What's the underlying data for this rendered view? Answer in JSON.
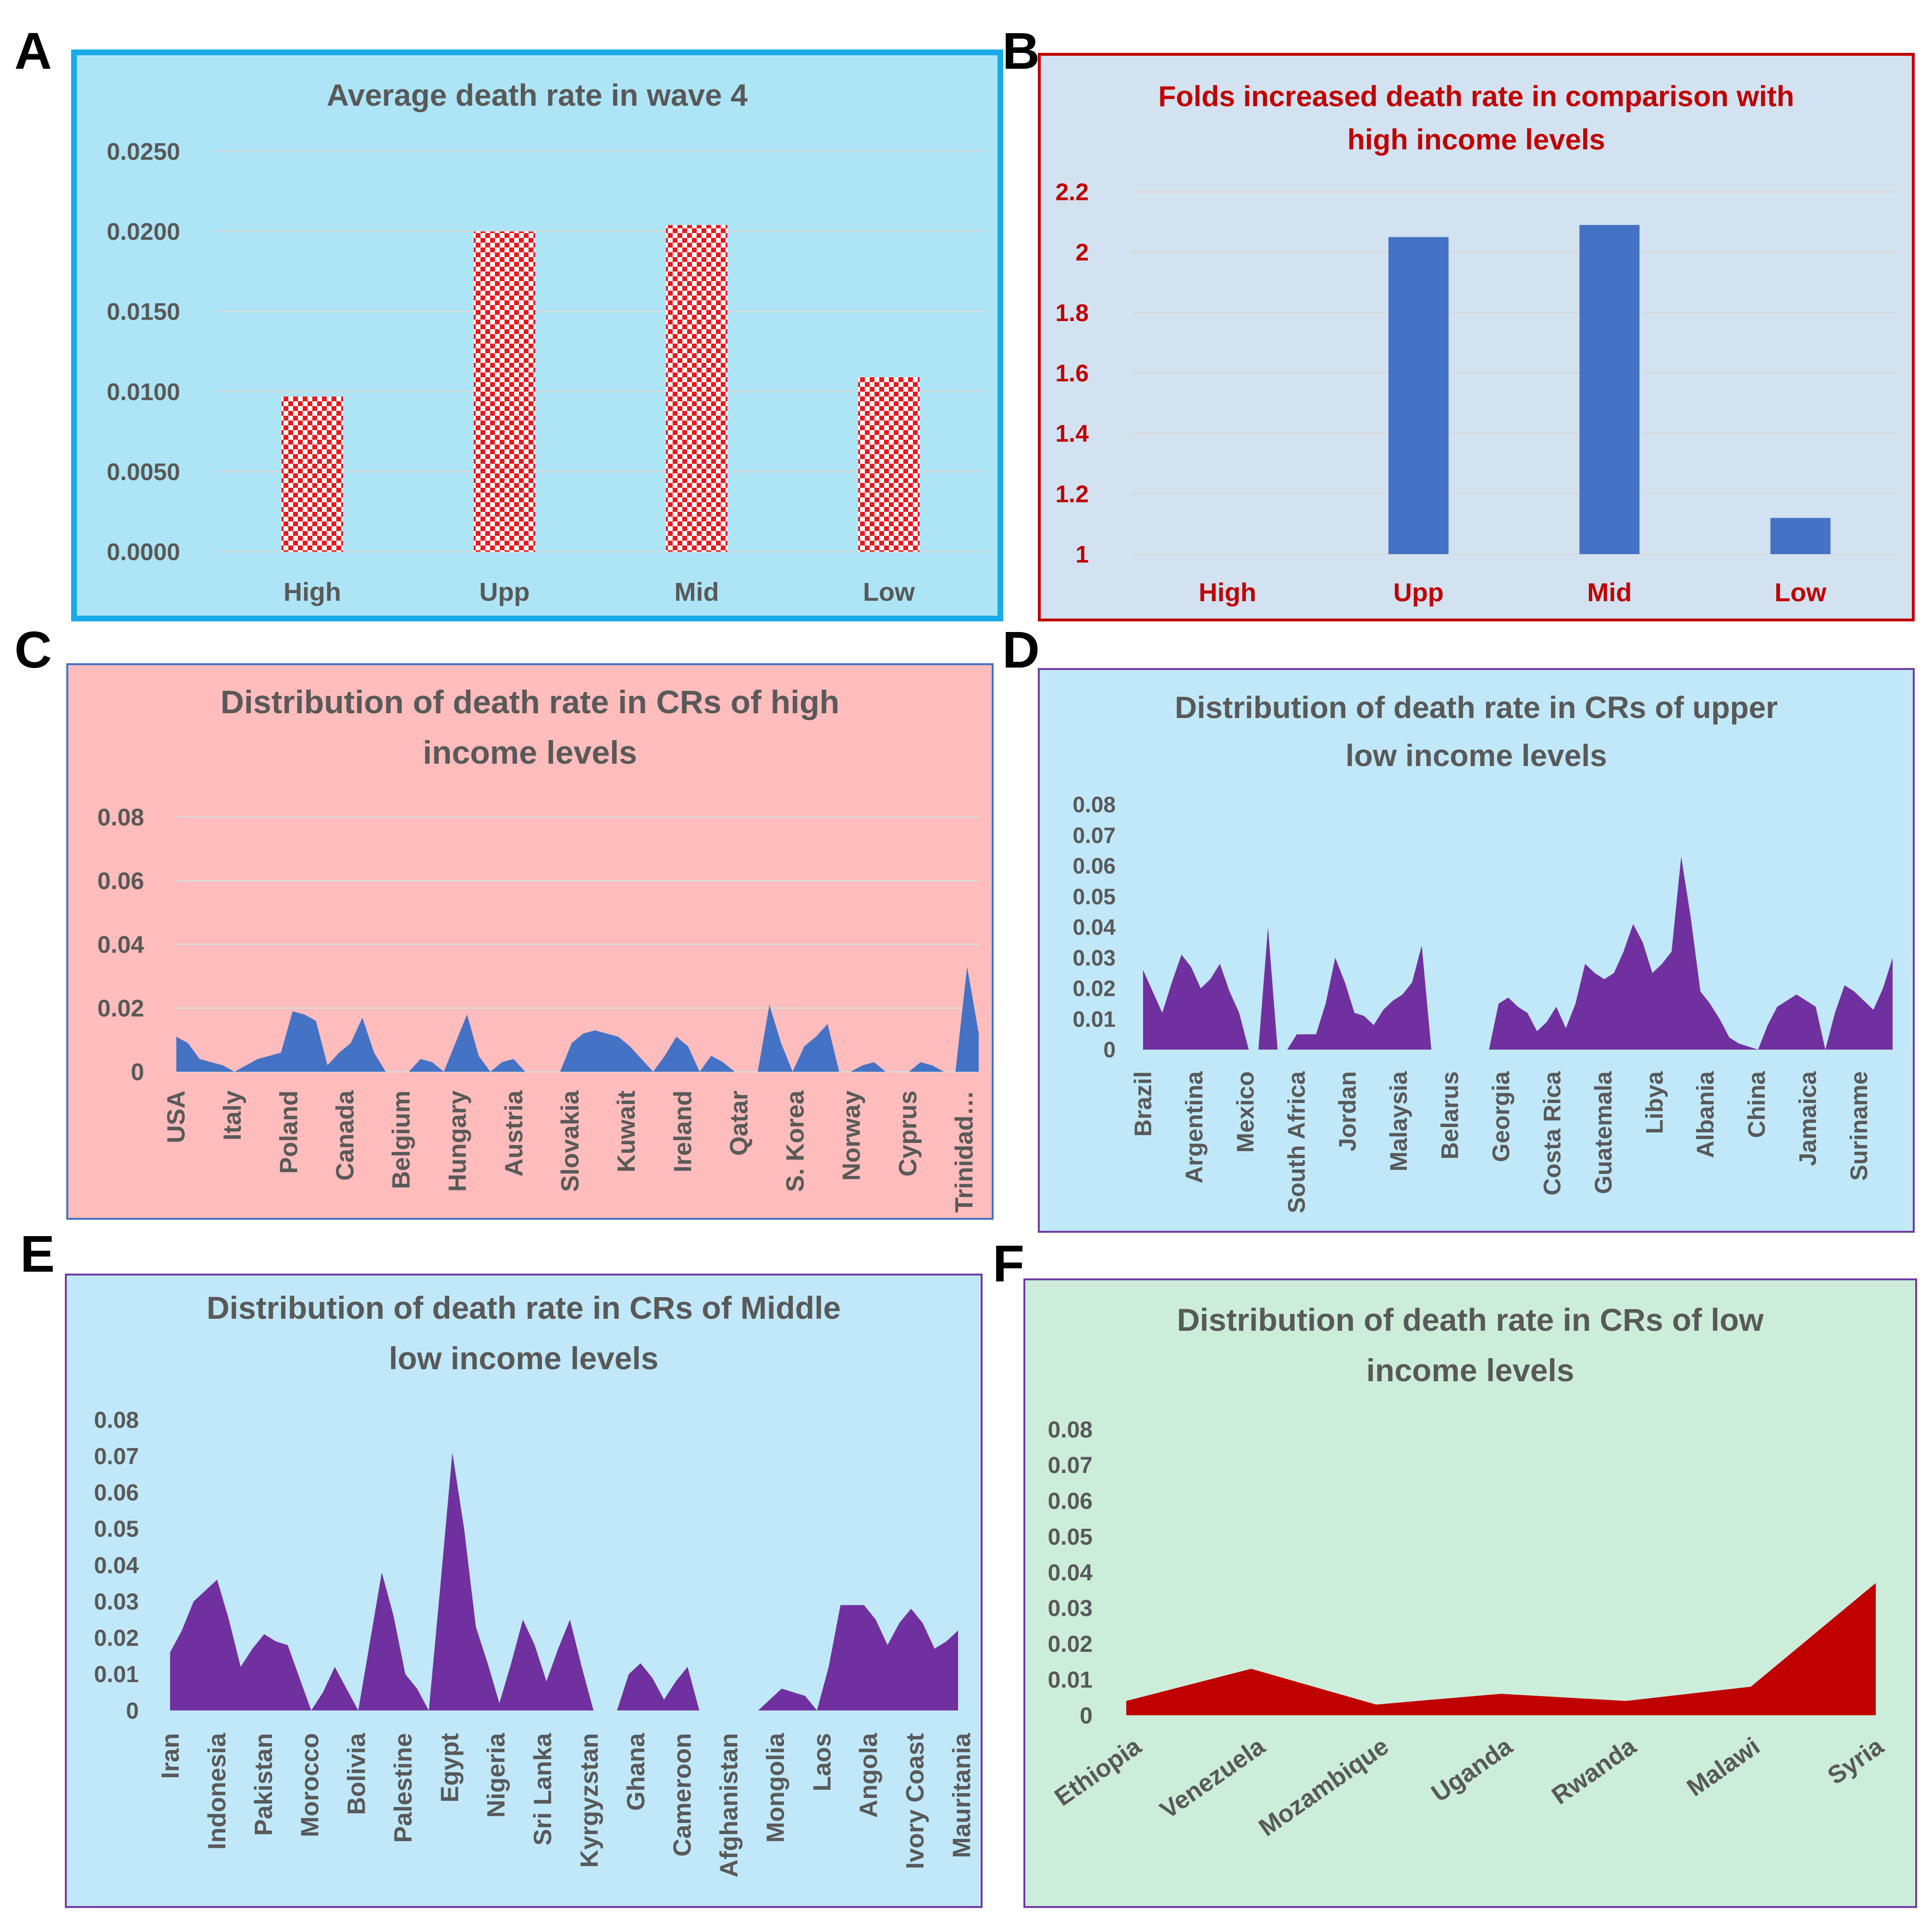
{
  "panel_letters": [
    "A",
    "B",
    "C",
    "D",
    "E",
    "F"
  ],
  "colors": {
    "panel_a_bg": "#ade5f6",
    "panel_a_border": "#19aae8",
    "panel_b_bg": "#d3e2f0",
    "panel_b_border": "#c00000",
    "panel_c_bg": "#ffbcbc",
    "panel_c_border": "#4472c4",
    "panel_d_bg": "#c1e8f8",
    "panel_d_border": "#6f3ca0",
    "panel_e_bg": "#c1e8f8",
    "panel_e_border": "#6f3ca0",
    "panel_f_bg": "#cdeddb",
    "panel_f_border": "#6f3ca0",
    "checker_red": "#e8191e",
    "bar_blue": "#4472c4",
    "area_blue": "#4472c4",
    "area_purple": "#7030a0",
    "area_red": "#c00000",
    "text_gray": "#595959",
    "text_red": "#c00000",
    "grid": "#d9d9d9"
  },
  "chart_data": [
    {
      "id": "A",
      "type": "bar",
      "title": "Average death rate in wave 4",
      "categories": [
        "High",
        "Upp",
        "Mid",
        "Low"
      ],
      "values": [
        0.0097,
        0.02,
        0.0204,
        0.0109
      ],
      "ylim": [
        0,
        0.025
      ],
      "yticks": [
        "0.0000",
        "0.0050",
        "0.0100",
        "0.0150",
        "0.0200",
        "0.0250"
      ],
      "bar_style": "checkered red",
      "xlabel": "",
      "ylabel": ""
    },
    {
      "id": "B",
      "type": "bar",
      "title_lines": [
        "Folds increased death rate in comparison with",
        "high income levels"
      ],
      "categories": [
        "High",
        "Upp",
        "Mid",
        "Low"
      ],
      "values": [
        1.0,
        2.05,
        2.09,
        1.12
      ],
      "ylim": [
        1,
        2.2
      ],
      "yticks": [
        "1",
        "1.2",
        "1.4",
        "1.6",
        "1.8",
        "2",
        "2.2"
      ],
      "xlabel": "",
      "ylabel": ""
    },
    {
      "id": "C",
      "type": "area",
      "title_lines": [
        "Distribution of death rate in CRs of high",
        "income levels"
      ],
      "ylim": [
        0,
        0.08
      ],
      "yticks": [
        "0",
        "0.02",
        "0.04",
        "0.06",
        "0.08"
      ],
      "tick_labels": [
        "USA",
        "Italy",
        "Poland",
        "Canada",
        "Belgium",
        "Hungary",
        "Austria",
        "Slovakia",
        "Kuwait",
        "Ireland",
        "Qatar",
        "S. Korea",
        "Norway",
        "Cyprus",
        "Trinidad…"
      ],
      "values": [
        0.011,
        0.009,
        0.004,
        0.003,
        0.002,
        0,
        0.002,
        0.004,
        0.005,
        0.006,
        0.019,
        0.018,
        0.016,
        0.002,
        0.006,
        0.009,
        0.017,
        0.006,
        0,
        0,
        0,
        0.004,
        0.003,
        0,
        0.009,
        0.018,
        0.005,
        0,
        0.003,
        0.004,
        0,
        0,
        0,
        0,
        0.009,
        0.012,
        0.013,
        0.012,
        0.011,
        0.008,
        0.004,
        0,
        0.005,
        0.011,
        0.008,
        0,
        0.005,
        0.003,
        0,
        0,
        0,
        0.021,
        0.009,
        0,
        0.008,
        0.011,
        0.015,
        0,
        0,
        0.002,
        0.003,
        0,
        0,
        0,
        0.003,
        0.002,
        0,
        0,
        0.033,
        0.012
      ]
    },
    {
      "id": "D",
      "type": "area",
      "title_lines": [
        "Distribution of death rate in CRs of upper",
        "low income levels"
      ],
      "ylim": [
        0,
        0.08
      ],
      "yticks": [
        "0",
        "0.01",
        "0.02",
        "0.03",
        "0.04",
        "0.05",
        "0.06",
        "0.07",
        "0.08"
      ],
      "tick_labels": [
        "Brazil",
        "Argentina",
        "Mexico",
        "South Africa",
        "Jordan",
        "Malaysia",
        "Belarus",
        "Georgia",
        "Costa Rica",
        "Guatemala",
        "Libya",
        "Albania",
        "China",
        "Jamaica",
        "Suriname"
      ],
      "values": [
        0.026,
        0.019,
        0.012,
        0.022,
        0.031,
        0.027,
        0.02,
        0.023,
        0.028,
        0.019,
        0.012,
        0,
        0,
        0.04,
        0,
        0,
        0.005,
        0.005,
        0.005,
        0.015,
        0.03,
        0.022,
        0.012,
        0.011,
        0.008,
        0.013,
        0.016,
        0.018,
        0.022,
        0.034,
        0,
        0,
        0,
        0,
        0,
        0,
        0,
        0.015,
        0.017,
        0.014,
        0.012,
        0.006,
        0.009,
        0.014,
        0.007,
        0.015,
        0.028,
        0.025,
        0.023,
        0.025,
        0.032,
        0.041,
        0.035,
        0.025,
        0.028,
        0.032,
        0.063,
        0.043,
        0.019,
        0.015,
        0.01,
        0.004,
        0.002,
        0.001,
        0,
        0.008,
        0.014,
        0.016,
        0.018,
        0.016,
        0.014,
        0,
        0.012,
        0.021,
        0.019,
        0.016,
        0.013,
        0.02,
        0.03
      ]
    },
    {
      "id": "E",
      "type": "area",
      "title_lines": [
        "Distribution of death rate in CRs of Middle",
        "low income levels"
      ],
      "ylim": [
        0,
        0.08
      ],
      "yticks": [
        "0",
        "0.01",
        "0.02",
        "0.03",
        "0.04",
        "0.05",
        "0.06",
        "0.07",
        "0.08"
      ],
      "tick_labels": [
        "Iran",
        "Indonesia",
        "Pakistan",
        "Morocco",
        "Bolivia",
        "Palestine",
        "Egypt",
        "Nigeria",
        "Sri Lanka",
        "Kyrgyzstan",
        "Ghana",
        "Cameroon",
        "Afghanistan",
        "Mongolia",
        "Laos",
        "Angola",
        "Ivory Coast",
        "Mauritania"
      ],
      "values": [
        0.016,
        0.022,
        0.03,
        0.033,
        0.036,
        0.025,
        0.012,
        0.017,
        0.021,
        0.019,
        0.018,
        0.009,
        0,
        0.005,
        0.012,
        0.006,
        0,
        0.019,
        0.038,
        0.026,
        0.01,
        0.006,
        0,
        0.035,
        0.071,
        0.05,
        0.023,
        0.013,
        0.002,
        0.013,
        0.025,
        0.018,
        0.008,
        0.017,
        0.025,
        0.012,
        0,
        0,
        0,
        0.01,
        0.013,
        0.009,
        0.003,
        0.008,
        0.012,
        0,
        0,
        0,
        0,
        0,
        0,
        0.003,
        0.006,
        0.005,
        0.004,
        0,
        0.012,
        0.029,
        0.029,
        0.029,
        0.025,
        0.018,
        0.024,
        0.028,
        0.024,
        0.017,
        0.019,
        0.022
      ]
    },
    {
      "id": "F",
      "type": "area",
      "title_lines": [
        "Distribution of death rate in CRs of low",
        "income levels"
      ],
      "ylim": [
        0,
        0.08
      ],
      "yticks": [
        "0",
        "0.01",
        "0.02",
        "0.03",
        "0.04",
        "0.05",
        "0.06",
        "0.07",
        "0.08"
      ],
      "tick_labels": [
        "Ethiopia",
        "Venezuela",
        "Mozambique",
        "Uganda",
        "Rwanda",
        "Malawi",
        "Syria"
      ],
      "values": [
        0.004,
        0.013,
        0.003,
        0.006,
        0.004,
        0.008,
        0.037
      ]
    }
  ]
}
